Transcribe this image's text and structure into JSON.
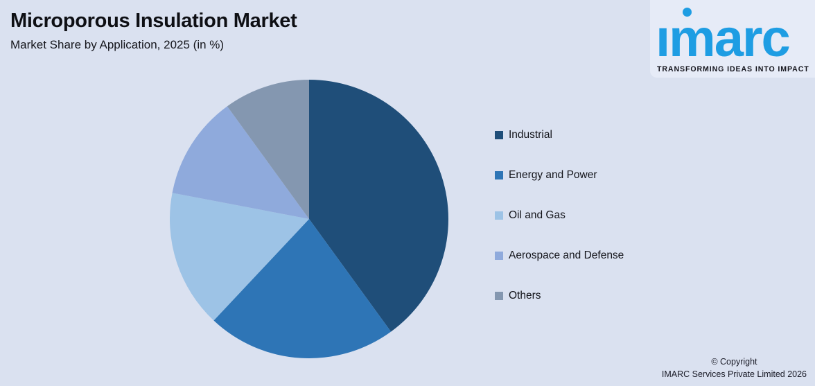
{
  "page_background": "#dae1f0",
  "brand": {
    "logo_text": "imarc",
    "logo_color": "#1e9de3",
    "tagline": "TRANSFORMING IDEAS INTO IMPACT"
  },
  "footer": {
    "line1": "© Copyright",
    "line2": "IMARC Services Private Limited 2026"
  },
  "chart_data": {
    "type": "pie",
    "title": "Microporous Insulation Market",
    "subtitle": "Market Share by Application, 2025 (in %)",
    "values_unit": "%",
    "start_angle_deg": 0,
    "direction": "clockwise",
    "legend_position": "right",
    "slices": [
      {
        "label": "Industrial",
        "value": 40,
        "color": "#1f4e79"
      },
      {
        "label": "Energy and Power",
        "value": 22,
        "color": "#2e75b6"
      },
      {
        "label": "Oil and Gas",
        "value": 16,
        "color": "#9dc3e6"
      },
      {
        "label": "Aerospace and Defense",
        "value": 12,
        "color": "#8faadc"
      },
      {
        "label": "Others",
        "value": 10,
        "color": "#8497b0"
      }
    ]
  }
}
